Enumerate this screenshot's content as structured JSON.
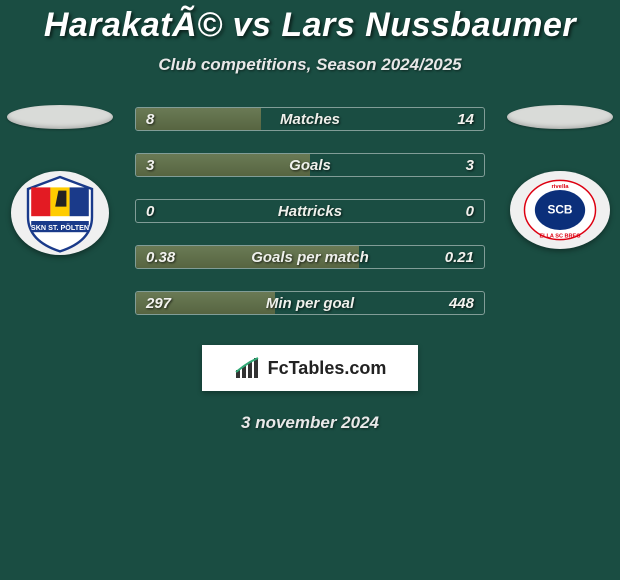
{
  "header": {
    "title": "HarakatÃ© vs Lars Nussbaumer",
    "subtitle": "Club competitions, Season 2024/2025"
  },
  "stats": [
    {
      "label": "Matches",
      "left_val": "8",
      "right_val": "14",
      "left_pct": 36
    },
    {
      "label": "Goals",
      "left_val": "3",
      "right_val": "3",
      "left_pct": 50
    },
    {
      "label": "Hattricks",
      "left_val": "0",
      "right_val": "0",
      "left_pct": 0
    },
    {
      "label": "Goals per match",
      "left_val": "0.38",
      "right_val": "0.21",
      "left_pct": 64
    },
    {
      "label": "Min per goal",
      "left_val": "297",
      "right_val": "448",
      "left_pct": 40
    }
  ],
  "brand": {
    "text": "FcTables.com"
  },
  "date": "3 november 2024",
  "colors": {
    "background": "#1a4d42",
    "bar_fill": "#5f6e49",
    "bar_border": "rgba(255,255,255,0.45)",
    "text": "#ffffff",
    "brand_bg": "#ffffff",
    "brand_text": "#222222"
  },
  "clubs": {
    "left": {
      "name": "SKN St. Pölten",
      "badge_name": "skn-st-polten-badge"
    },
    "right": {
      "name": "SC Bregenz",
      "badge_name": "sc-bregenz-badge"
    }
  }
}
